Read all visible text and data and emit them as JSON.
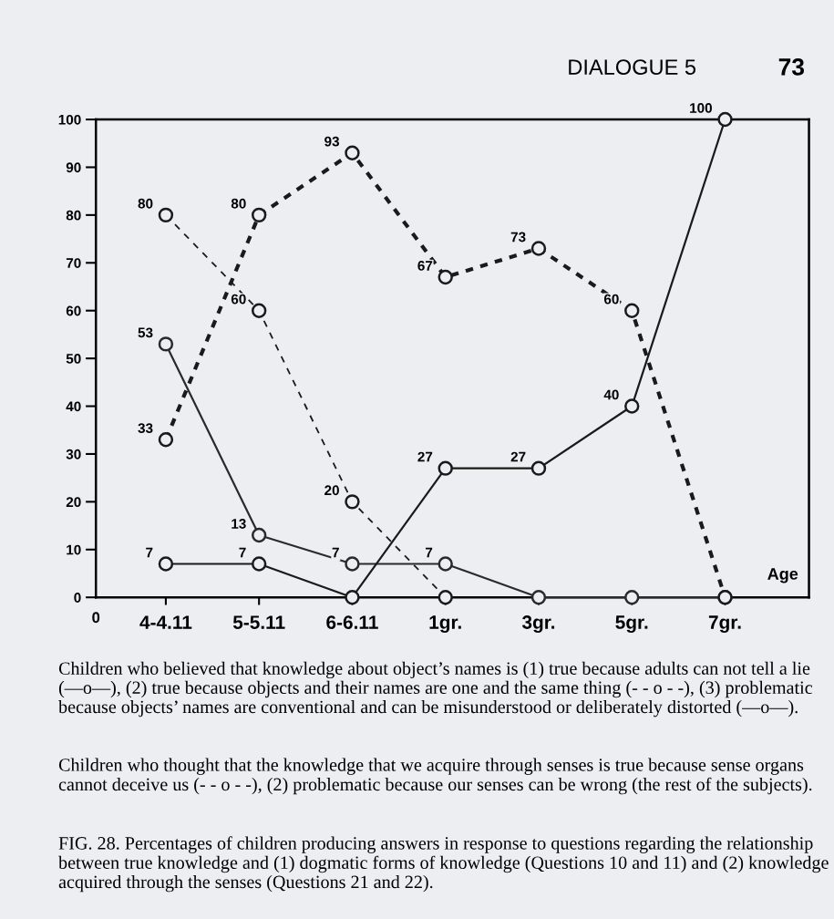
{
  "chart_data": {
    "type": "line",
    "categories": [
      "4-4.11",
      "5-5.11",
      "6-6.11",
      "1gr.",
      "3gr.",
      "5gr.",
      "7gr."
    ],
    "xlabel": "Age",
    "ylim": [
      0,
      100
    ],
    "yticks": [
      0,
      10,
      20,
      30,
      40,
      50,
      60,
      70,
      80,
      90,
      100
    ],
    "marker": "circle",
    "grid": false,
    "series": [
      {
        "color": "#2a2a2a",
        "line_style": "solid",
        "values": [
          53,
          13,
          7,
          7,
          0,
          0,
          0
        ],
        "value_labels": [
          "53",
          "13",
          "7",
          "7",
          null,
          null,
          null
        ]
      },
      {
        "color": "#1a1a1a",
        "line_style": "dashed",
        "values": [
          80,
          60,
          20,
          0,
          null,
          null,
          null
        ],
        "value_labels": [
          "80",
          "60",
          "20",
          null,
          null,
          null,
          null
        ]
      },
      {
        "color": "#1a1a1a",
        "line_style": "solid",
        "values": [
          7,
          7,
          0,
          27,
          27,
          40,
          100
        ],
        "value_labels": [
          "7",
          "7",
          null,
          "27",
          "27",
          "40",
          "100"
        ]
      },
      {
        "color": "#1a1a1a",
        "line_style": "dotted",
        "values": [
          33,
          80,
          93,
          67,
          73,
          60,
          0
        ],
        "value_labels": [
          "33",
          "80",
          "93",
          "67",
          "73",
          "60",
          null
        ]
      }
    ],
    "annotations": [
      "DIALOGUE 5",
      "73",
      "0",
      "Children who believed that knowledge about object’s names is (1) true because adults can not tell a lie (—o—), (2) true because objects and their names are one and the same thing (- - o - -), (3) problematic because objects’ names are conventional and can be misunderstood or deliberately distorted (—o—).",
      "Children who thought that the knowledge that we acquire through senses is true because sense organs cannot deceive us (- - o - -), (2) problematic because our senses can be wrong (the rest of the subjects).",
      "FIG. 28. Percentages of children producing answers in response to questions regarding the relationship between true knowledge and (1) dogmatic forms of knowledge (Questions 10 and 11) and (2) knowledge acquired through the senses (Questions 21 and 22)."
    ]
  }
}
